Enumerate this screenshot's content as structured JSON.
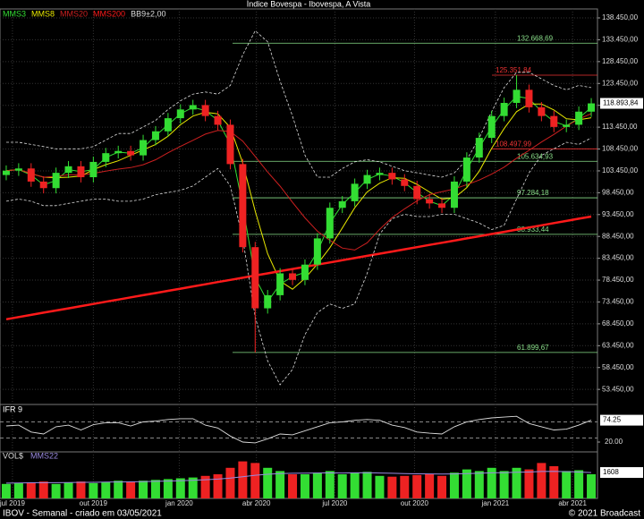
{
  "chart_data": [
    {
      "type": "candlestick",
      "title": "Índice Bovespa - Ibovespa, A Vista",
      "up_color": "#33dd33",
      "down_color": "#ee2222",
      "open": [
        102500,
        103500,
        104000,
        101000,
        99500,
        103000,
        104500,
        102000,
        105500,
        107500,
        108000,
        107000,
        110500,
        112500,
        115500,
        117500,
        118500,
        116000,
        114000,
        105000,
        86000,
        72000,
        75000,
        80000,
        78500,
        82000,
        88000,
        95000,
        96500,
        100500,
        102500,
        103000,
        101500,
        100000,
        97000,
        96000,
        95000,
        101000,
        106500,
        111000,
        116000,
        119000,
        122000,
        118000,
        116000,
        113500,
        114000,
        117000
      ],
      "high": [
        104700,
        105200,
        105200,
        102200,
        104200,
        105700,
        105700,
        106700,
        108700,
        109200,
        109200,
        111700,
        113700,
        116700,
        118700,
        119700,
        119700,
        117200,
        115200,
        106200,
        87200,
        76200,
        81200,
        81200,
        83200,
        89200,
        96200,
        97700,
        101700,
        103700,
        104200,
        104200,
        102700,
        101200,
        98200,
        97200,
        102200,
        107700,
        112200,
        117200,
        120200,
        125352,
        123200,
        119200,
        117200,
        115200,
        118200,
        120100
      ],
      "low": [
        101300,
        102300,
        99800,
        98300,
        98300,
        101800,
        100800,
        100800,
        104300,
        106300,
        105800,
        105800,
        109300,
        111300,
        114300,
        116300,
        114800,
        112800,
        103800,
        84800,
        61900,
        70800,
        73800,
        77300,
        77300,
        80800,
        86800,
        93800,
        95300,
        99300,
        101300,
        100300,
        98800,
        95800,
        94800,
        93800,
        93800,
        99800,
        105300,
        109800,
        114800,
        117800,
        116800,
        114800,
        112300,
        112300,
        112800,
        115800
      ],
      "close": [
        103500,
        104000,
        101000,
        99500,
        103000,
        104500,
        102000,
        105500,
        107500,
        108000,
        107000,
        110500,
        112500,
        115500,
        117500,
        118500,
        116000,
        114000,
        105000,
        86000,
        72000,
        75000,
        80000,
        78500,
        82000,
        88000,
        95000,
        96500,
        100500,
        102500,
        103000,
        101500,
        100000,
        97000,
        96000,
        95000,
        101000,
        106500,
        111000,
        116000,
        119000,
        122000,
        118000,
        116000,
        113500,
        114000,
        117000,
        118894
      ],
      "series": [
        {
          "name": "MMS3",
          "color": "#33dd33",
          "values": [
            103500,
            103750,
            102500,
            100250,
            101250,
            103750,
            103250,
            103750,
            106500,
            107750,
            107500,
            108750,
            111500,
            114000,
            116500,
            118000,
            117250,
            115000,
            109500,
            95500,
            79000,
            73500,
            77500,
            79250,
            80250,
            85000,
            91500,
            95750,
            98500,
            101500,
            102750,
            102250,
            100750,
            98500,
            96500,
            95500,
            98000,
            103750,
            108750,
            113500,
            117500,
            120500,
            120000,
            117000,
            114750,
            113750,
            115500,
            117950
          ]
        },
        {
          "name": "MMS8",
          "color": "#e8e800",
          "values": [
            103500,
            103750,
            102833,
            102000,
            101875,
            102000,
            102250,
            103750,
            104875,
            105750,
            107000,
            108250,
            109500,
            111375,
            114000,
            116000,
            116875,
            116500,
            113375,
            105250,
            94250,
            84500,
            78250,
            76375,
            78875,
            82125,
            85875,
            90375,
            95000,
            98625,
            100625,
            101875,
            101750,
            100375,
            98625,
            97000,
            97250,
            99625,
            103375,
            108625,
            113125,
            117000,
            118750,
            118750,
            117375,
            115375,
            115125,
            115600
          ]
        },
        {
          "name": "MMS20",
          "color": "#cc2020",
          "values": [
            103500,
            103750,
            102833,
            102000,
            102200,
            102583,
            102500,
            102875,
            103389,
            103850,
            104200,
            104850,
            106000,
            107600,
            109050,
            110450,
            111850,
            112700,
            112450,
            110250,
            106750,
            103200,
            99950,
            96250,
            92700,
            89650,
            87550,
            85800,
            85350,
            87000,
            90100,
            92750,
            94750,
            96600,
            98000,
            98700,
            99300,
            100300,
            101350,
            102700,
            104300,
            106350,
            108150,
            110050,
            111800,
            113700,
            115300,
            116539
          ]
        },
        {
          "name": "MMS200",
          "color": "#ff1a1a",
          "values": [
            69500,
            70000,
            70500,
            71000,
            71500,
            72000,
            72500,
            73000,
            73500,
            74000,
            74500,
            75000,
            75500,
            76000,
            76500,
            77000,
            77500,
            78000,
            78500,
            79000,
            79500,
            80000,
            80500,
            81000,
            81500,
            82000,
            82500,
            83000,
            83500,
            84000,
            84500,
            85000,
            85500,
            86000,
            86500,
            87000,
            87500,
            88000,
            88500,
            89000,
            89500,
            90000,
            90500,
            91000,
            91500,
            92000,
            92500,
            93000
          ]
        },
        {
          "name": "BB9±2,00",
          "color": "#dddddd",
          "upper": [
            110000,
            110000,
            109500,
            109000,
            108500,
            108500,
            108500,
            109000,
            110500,
            112000,
            112000,
            113500,
            115000,
            117500,
            119500,
            121000,
            121500,
            121000,
            123000,
            130000,
            135500,
            133000,
            124000,
            116000,
            107000,
            102000,
            102000,
            104000,
            105500,
            106000,
            105500,
            104500,
            103500,
            103000,
            102500,
            102000,
            103000,
            106000,
            111000,
            117000,
            122500,
            126000,
            126000,
            124500,
            123000,
            122000,
            123000,
            122500
          ],
          "lower": [
            96500,
            97000,
            96500,
            95500,
            95500,
            96000,
            96500,
            97000,
            97000,
            96500,
            96500,
            97000,
            98000,
            98500,
            99000,
            100000,
            102000,
            104000,
            100000,
            88000,
            70000,
            60000,
            54500,
            58000,
            66000,
            71000,
            73000,
            72000,
            73000,
            80000,
            89000,
            92500,
            93500,
            93000,
            93000,
            93500,
            93500,
            92500,
            91500,
            90000,
            91000,
            97000,
            103000,
            107000,
            108500,
            110000,
            109500,
            111000
          ]
        }
      ],
      "xlim": [
        -0.5,
        47.5
      ],
      "xticks": [
        {
          "value": 0.5,
          "label": "jul 2019"
        },
        {
          "value": 7.0,
          "label": "out 2019"
        },
        {
          "value": 13.9,
          "label": "jan 2020"
        },
        {
          "value": 20.1,
          "label": "abr 2020"
        },
        {
          "value": 26.4,
          "label": "jul 2020"
        },
        {
          "value": 32.8,
          "label": "out 2020"
        },
        {
          "value": 39.3,
          "label": "jan 2021"
        },
        {
          "value": 45.5,
          "label": "abr 2021"
        }
      ],
      "ylim": [
        50000,
        140500
      ],
      "yticks": [
        {
          "value": 138450,
          "label": "138.450,00"
        },
        {
          "value": 133450,
          "label": "133.450,00"
        },
        {
          "value": 128450,
          "label": "128.450,00"
        },
        {
          "value": 123450,
          "label": "123.450,00"
        },
        {
          "value": 118450,
          "label": "118.450,00"
        },
        {
          "value": 113450,
          "label": "113.450,00"
        },
        {
          "value": 108450,
          "label": "108.450,00"
        },
        {
          "value": 103450,
          "label": "103.450,00"
        },
        {
          "value": 98450,
          "label": "98.450,00"
        },
        {
          "value": 93450,
          "label": "93.450,00"
        },
        {
          "value": 88450,
          "label": "88.450,00"
        },
        {
          "value": 83450,
          "label": "83.450,00"
        },
        {
          "value": 78450,
          "label": "78.450,00"
        },
        {
          "value": 73450,
          "label": "73.450,00"
        },
        {
          "value": 68450,
          "label": "68.450,00"
        },
        {
          "value": 63450,
          "label": "63.450,00"
        },
        {
          "value": 58450,
          "label": "58.450,00"
        },
        {
          "value": 53450,
          "label": "53.450,00"
        }
      ],
      "levels": [
        {
          "value": 132668.69,
          "label": "132.668,69",
          "color": "#88dd88"
        },
        {
          "value": 125351.84,
          "label": "125.351,84",
          "color": "#ee3333"
        },
        {
          "value": 108497.99,
          "label": "108.497,99",
          "color": "#ee3333"
        },
        {
          "value": 105634.93,
          "label": "105.634,93",
          "color": "#88dd88"
        },
        {
          "value": 97284.18,
          "label": "97.284,18",
          "color": "#88dd88"
        },
        {
          "value": 88933.44,
          "label": "88.933,44",
          "color": "#88dd88"
        },
        {
          "value": 61899.67,
          "label": "61.899,67",
          "color": "#88dd88"
        }
      ],
      "last": {
        "value": 118893.84,
        "label": "118.893,84"
      }
    },
    {
      "type": "line",
      "title": "IFR 9",
      "color": "#dddddd",
      "values": [
        60,
        62,
        45,
        40,
        58,
        62,
        50,
        63,
        68,
        68,
        60,
        70,
        72,
        76,
        78,
        78,
        62,
        55,
        35,
        20,
        18,
        28,
        40,
        38,
        48,
        58,
        68,
        70,
        74,
        76,
        74,
        62,
        56,
        45,
        42,
        40,
        58,
        70,
        76,
        80,
        82,
        84,
        66,
        58,
        50,
        52,
        62,
        74.25
      ],
      "ylim": [
        0,
        100
      ],
      "yticks": [
        {
          "value": 20,
          "label": "20.00"
        }
      ],
      "guides": [
        30,
        70
      ],
      "last": {
        "value": 74.25,
        "label": "74.25"
      }
    },
    {
      "type": "bar",
      "series": [
        {
          "name": "VOL$",
          "color": "#dddddd",
          "values": [
            900,
            950,
            1000,
            1050,
            900,
            1000,
            1050,
            950,
            1000,
            1100,
            1050,
            1100,
            1150,
            1200,
            1250,
            1300,
            1400,
            1500,
            1900,
            2300,
            2200,
            1900,
            1700,
            1500,
            1500,
            1600,
            1700,
            1500,
            1600,
            1650,
            1400,
            1350,
            1400,
            1450,
            1500,
            1400,
            1600,
            1800,
            1700,
            1900,
            1700,
            1900,
            1800,
            2200,
            2000,
            1700,
            1750,
            1500
          ]
        },
        {
          "name": "MMS22",
          "color": "#9a8ae0",
          "values": [
            950,
            960,
            970,
            980,
            980,
            990,
            1000,
            1000,
            1010,
            1020,
            1030,
            1040,
            1060,
            1080,
            1100,
            1130,
            1160,
            1200,
            1260,
            1350,
            1440,
            1500,
            1540,
            1560,
            1570,
            1580,
            1590,
            1580,
            1590,
            1600,
            1580,
            1560,
            1540,
            1530,
            1520,
            1510,
            1520,
            1540,
            1560,
            1590,
            1600,
            1620,
            1640,
            1670,
            1680,
            1660,
            1640,
            1608
          ]
        }
      ],
      "ylim": [
        0,
        2500
      ],
      "last": {
        "value": 1608,
        "label": "1608"
      }
    }
  ],
  "footer": {
    "left": "IBOV - Semanal - criado em 03/05/2021",
    "right": "© 2021 Broadcast"
  }
}
